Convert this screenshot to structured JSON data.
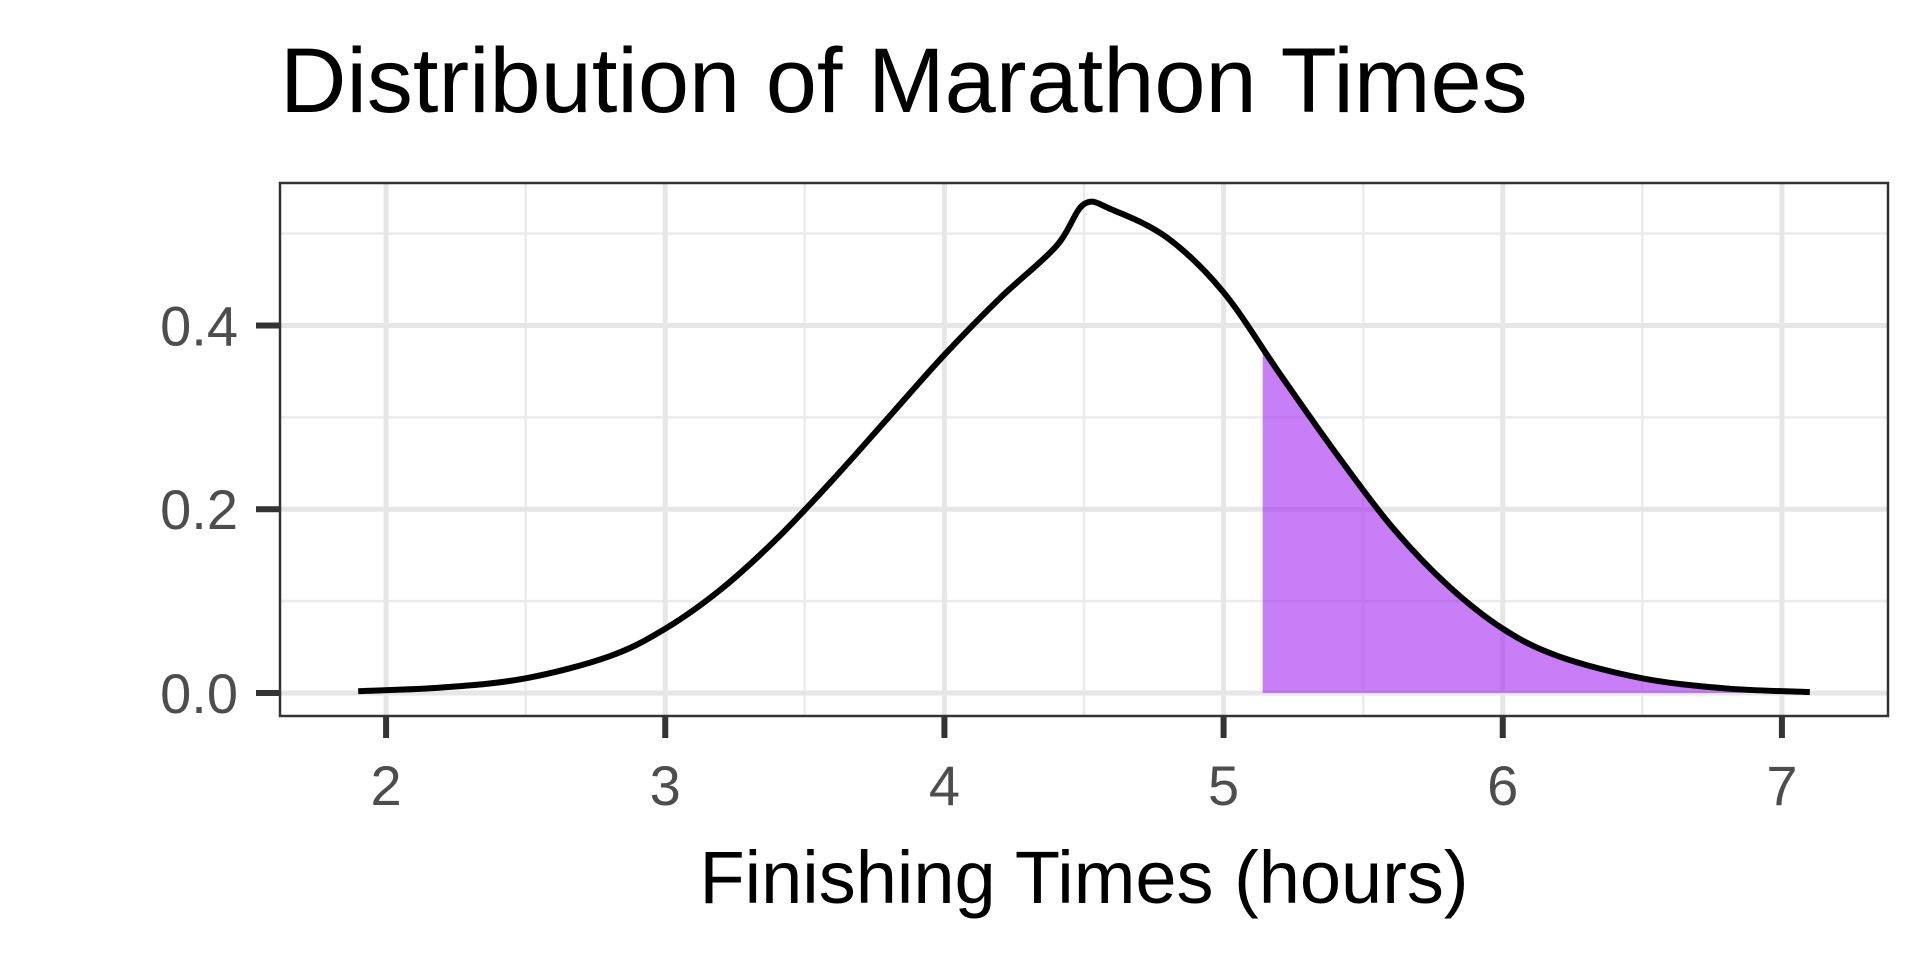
{
  "chart_data": {
    "type": "area",
    "title": "Distribution of Marathon Times",
    "xlabel": "Finishing Times (hours)",
    "ylabel": "",
    "xlim": [
      1.62,
      7.38
    ],
    "ylim": [
      -0.025,
      0.555
    ],
    "x_ticks": [
      2,
      3,
      4,
      5,
      6,
      7
    ],
    "x_tick_labels": [
      "2",
      "3",
      "4",
      "5",
      "6",
      "7"
    ],
    "y_ticks": [
      0.0,
      0.2,
      0.4
    ],
    "y_tick_labels": [
      "0.0",
      "0.2",
      "0.4"
    ],
    "grid": true,
    "legend": "none",
    "series": [
      {
        "kind": "density-curve",
        "x": [
          1.9,
          2.2,
          2.5,
          2.8,
          3.0,
          3.2,
          3.4,
          3.6,
          3.8,
          4.0,
          4.2,
          4.4,
          4.5,
          4.6,
          4.8,
          5.0,
          5.2,
          5.4,
          5.6,
          5.8,
          6.0,
          6.2,
          6.5,
          6.8,
          7.1
        ],
        "y": [
          0.002,
          0.006,
          0.016,
          0.04,
          0.07,
          0.113,
          0.168,
          0.232,
          0.3,
          0.368,
          0.43,
          0.486,
          0.532,
          0.526,
          0.495,
          0.436,
          0.348,
          0.262,
          0.182,
          0.118,
          0.07,
          0.04,
          0.016,
          0.005,
          0.001
        ],
        "color": "#000000"
      },
      {
        "kind": "shaded-region",
        "x_start": 5.14,
        "x_end": 7.1,
        "color": "#a020f0",
        "opacity": 0.58
      }
    ]
  }
}
